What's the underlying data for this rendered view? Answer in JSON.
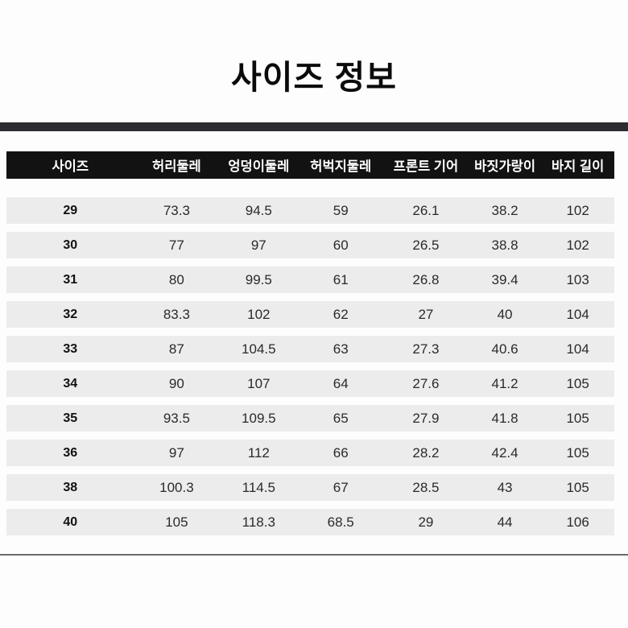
{
  "title": "사이즈 정보",
  "chart_data": {
    "type": "table",
    "title": "사이즈 정보",
    "columns": [
      "사이즈",
      "허리둘레",
      "엉덩이둘레",
      "허벅지둘레",
      "프론트 기어",
      "바짓가랑이",
      "바지 길이"
    ],
    "rows": [
      [
        "29",
        "73.3",
        "94.5",
        "59",
        "26.1",
        "38.2",
        "102"
      ],
      [
        "30",
        "77",
        "97",
        "60",
        "26.5",
        "38.8",
        "102"
      ],
      [
        "31",
        "80",
        "99.5",
        "61",
        "26.8",
        "39.4",
        "103"
      ],
      [
        "32",
        "83.3",
        "102",
        "62",
        "27",
        "40",
        "104"
      ],
      [
        "33",
        "87",
        "104.5",
        "63",
        "27.3",
        "40.6",
        "104"
      ],
      [
        "34",
        "90",
        "107",
        "64",
        "27.6",
        "41.2",
        "105"
      ],
      [
        "35",
        "93.5",
        "109.5",
        "65",
        "27.9",
        "41.8",
        "105"
      ],
      [
        "36",
        "97",
        "112",
        "66",
        "28.2",
        "42.4",
        "105"
      ],
      [
        "38",
        "100.3",
        "114.5",
        "67",
        "28.5",
        "43",
        "105"
      ],
      [
        "40",
        "105",
        "118.3",
        "68.5",
        "29",
        "44",
        "106"
      ]
    ]
  },
  "colors": {
    "header_bg": "#121212",
    "header_text": "#ffffff",
    "row_bg": "#ececec",
    "top_bar": "#2c2c31",
    "bottom_line": "#6b6b6b",
    "title_text": "#0b0b0b"
  }
}
